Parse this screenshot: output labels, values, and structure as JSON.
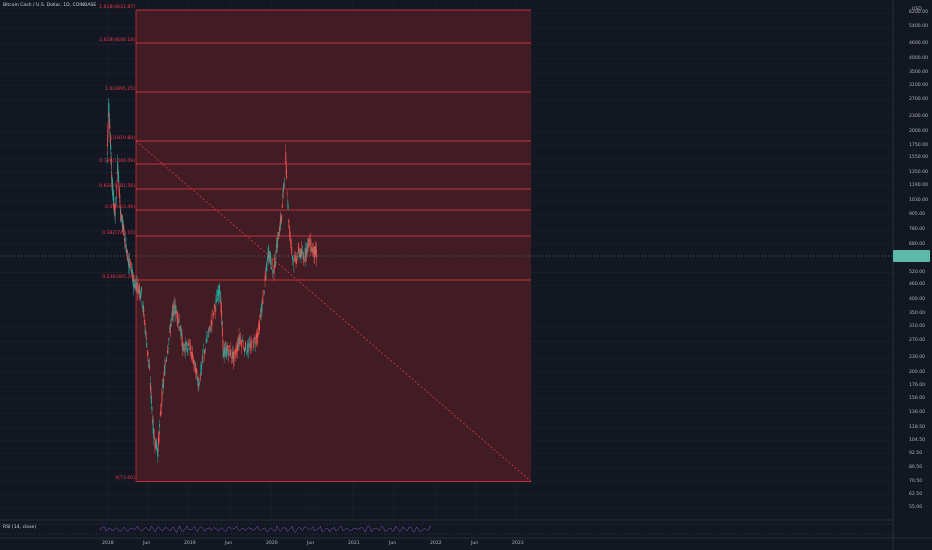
{
  "header": {
    "symbol_line": "Bitcoin Cash / U.S. Dollar, 1D, COINBASE",
    "currency": "USD"
  },
  "fib_levels": [
    {
      "label": "1.618(4631.87)",
      "price": 4631.87
    },
    {
      "label": "2.618(4646.18)",
      "price": 4646.18
    },
    {
      "label": "1.6(2895.25)",
      "price": 2895.25
    },
    {
      "label": "1(1819.80)",
      "price": 1819.8
    },
    {
      "label": "0.786(1446.09)",
      "price": 1446.09
    },
    {
      "label": "0.618(1181.56)",
      "price": 1181.56
    },
    {
      "label": "0.5(1003.46)",
      "price": 1003.46
    },
    {
      "label": "0.382(740.10)",
      "price": 740.1
    },
    {
      "label": "0.236(485.29)",
      "price": 485.29
    },
    {
      "label": "0(73.00)",
      "price": 73.0
    }
  ],
  "y_axis": [
    "6200.00",
    "5400.00",
    "4600.00",
    "4000.00",
    "3500.00",
    "3100.00",
    "2700.00",
    "2300.00",
    "2000.00",
    "1750.00",
    "1550.00",
    "1350.00",
    "1190.00",
    "1030.00",
    "905.00",
    "780.00",
    "680.00",
    "520.00",
    "460.00",
    "400.00",
    "350.00",
    "310.00",
    "270.00",
    "230.00",
    "200.00",
    "176.00",
    "156.00",
    "136.00",
    "118.50",
    "104.50",
    "92.50",
    "80.50",
    "70.50",
    "62.50",
    "55.00"
  ],
  "x_axis": [
    "2018",
    "Jun",
    "2019",
    "Jun",
    "2020",
    "Jun",
    "2021",
    "Jun",
    "2022",
    "Jun",
    "2023"
  ],
  "indicator": {
    "label": "RSI (14, close)"
  },
  "colors": {
    "background": "#131722",
    "fib_line": "#f23645",
    "fib_fill": "#4a1d24",
    "candle_up": "#26a69a",
    "candle_down": "#ef5350",
    "price_tag": "#5cb8a8"
  },
  "price_path": [
    [
      0.0,
      1500
    ],
    [
      0.02,
      2600
    ],
    [
      0.04,
      1900
    ],
    [
      0.06,
      1250
    ],
    [
      0.08,
      1050
    ],
    [
      0.1,
      900
    ],
    [
      0.13,
      1420
    ],
    [
      0.17,
      900
    ],
    [
      0.21,
      760
    ],
    [
      0.25,
      600
    ],
    [
      0.29,
      540
    ],
    [
      0.33,
      470
    ],
    [
      0.37,
      460
    ],
    [
      0.42,
      430
    ],
    [
      0.47,
      300
    ],
    [
      0.52,
      200
    ],
    [
      0.57,
      110
    ],
    [
      0.62,
      95
    ],
    [
      0.67,
      160
    ],
    [
      0.72,
      230
    ],
    [
      0.78,
      320
    ],
    [
      0.82,
      380
    ],
    [
      0.88,
      330
    ],
    [
      0.93,
      250
    ],
    [
      1.0,
      260
    ],
    [
      1.06,
      220
    ],
    [
      1.12,
      180
    ],
    [
      1.18,
      240
    ],
    [
      1.25,
      300
    ],
    [
      1.32,
      380
    ],
    [
      1.38,
      450
    ],
    [
      1.42,
      240
    ],
    [
      1.48,
      250
    ],
    [
      1.55,
      230
    ],
    [
      1.62,
      280
    ],
    [
      1.7,
      250
    ],
    [
      1.78,
      260
    ],
    [
      1.85,
      300
    ],
    [
      1.92,
      450
    ],
    [
      1.97,
      640
    ],
    [
      2.03,
      520
    ],
    [
      2.08,
      700
    ],
    [
      2.13,
      900
    ],
    [
      2.18,
      1550
    ],
    [
      2.22,
      800
    ],
    [
      2.28,
      560
    ],
    [
      2.34,
      640
    ],
    [
      2.4,
      600
    ],
    [
      2.46,
      700
    ],
    [
      2.52,
      640
    ],
    [
      2.56,
      620
    ]
  ]
}
